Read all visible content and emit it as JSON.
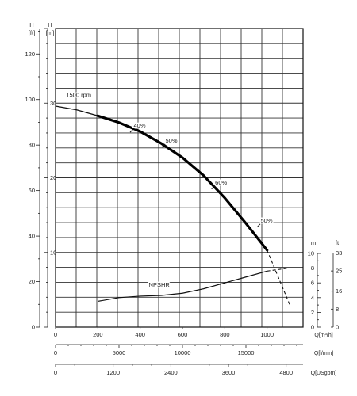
{
  "chart_data": {
    "type": "line",
    "title": "",
    "speed_label": "1500 rpm",
    "left_axes": {
      "ft": {
        "unit": "H",
        "unit2": "[ft]",
        "ticks": [
          "0",
          "20",
          "40",
          "60",
          "80",
          "100",
          "120"
        ]
      },
      "m": {
        "unit": "H",
        "unit2": "[m]",
        "ticks": [
          "10",
          "20",
          "30"
        ]
      }
    },
    "right_axes": {
      "m": {
        "unit": "m",
        "ticks": [
          "0",
          "2",
          "4",
          "6",
          "8",
          "10"
        ]
      },
      "ft": {
        "unit": "ft",
        "ticks": [
          "0",
          "8",
          "16",
          "25",
          "33"
        ]
      }
    },
    "bottom_axes": [
      {
        "label": "Q[m³/h]",
        "ticks": [
          "0",
          "200",
          "400",
          "600",
          "800",
          "1000"
        ]
      },
      {
        "label": "Q[l/min]",
        "ticks": [
          "0",
          "5000",
          "10000",
          "15000"
        ]
      },
      {
        "label": "Q[USgpm]",
        "ticks": [
          "0",
          "1200",
          "2400",
          "3600",
          "4800"
        ]
      }
    ],
    "series": [
      {
        "name": "1500 rpm",
        "axis": "H[m]",
        "x": [
          0,
          100,
          200,
          300,
          400,
          500,
          600,
          700,
          800,
          900,
          1000
        ],
        "y": [
          29.6,
          29.1,
          28.3,
          27.4,
          26.2,
          24.6,
          22.7,
          20.3,
          17.3,
          13.9,
          10.3
        ]
      },
      {
        "name": "NPSHR",
        "axis": "NPSH[m]",
        "x": [
          200,
          300,
          400,
          500,
          600,
          700,
          800,
          900,
          1000,
          1100
        ],
        "y": [
          3.5,
          4.0,
          4.2,
          4.3,
          4.6,
          5.2,
          6.0,
          6.8,
          7.6,
          8.0
        ]
      }
    ],
    "efficiency_labels": [
      "40%",
      "50%",
      "60%",
      "50%"
    ],
    "npsh_label": "NPSHR"
  }
}
